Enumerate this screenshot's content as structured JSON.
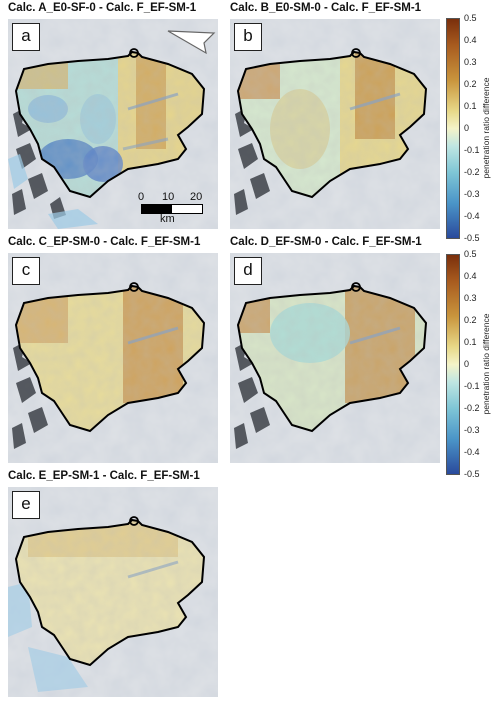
{
  "panels": [
    {
      "title": "Calc. A_E0-SF-0 - Calc. F_EF-SM-1",
      "letter": "a"
    },
    {
      "title": "Calc. B_E0-SM-0 - Calc. F_EF-SM-1",
      "letter": "b"
    },
    {
      "title": "Calc. C_EP-SM-0 - Calc. F_EF-SM-1",
      "letter": "c"
    },
    {
      "title": "Calc. D_EF-SM-0 - Calc. F_EF-SM-1",
      "letter": "d"
    },
    {
      "title": "Calc. E_EP-SM-1 - Calc. F_EF-SM-1",
      "letter": "e"
    }
  ],
  "colorbar": {
    "label": "penetration ratio difference",
    "ticks": [
      "0.5",
      "0.4",
      "0.3",
      "0.2",
      "0.1",
      "0",
      "-0.1",
      "-0.2",
      "-0.3",
      "-0.4",
      "-0.5"
    ]
  },
  "scalebar": {
    "ticks": [
      "0",
      "10",
      "20"
    ],
    "unit": "km"
  },
  "colors": {
    "brown": "#9c4a1e",
    "tan": "#d9b468",
    "yellow": "#ece6a6",
    "cyan": "#a9ddd9",
    "blue": "#4d7fc4",
    "outline": "#000000"
  }
}
